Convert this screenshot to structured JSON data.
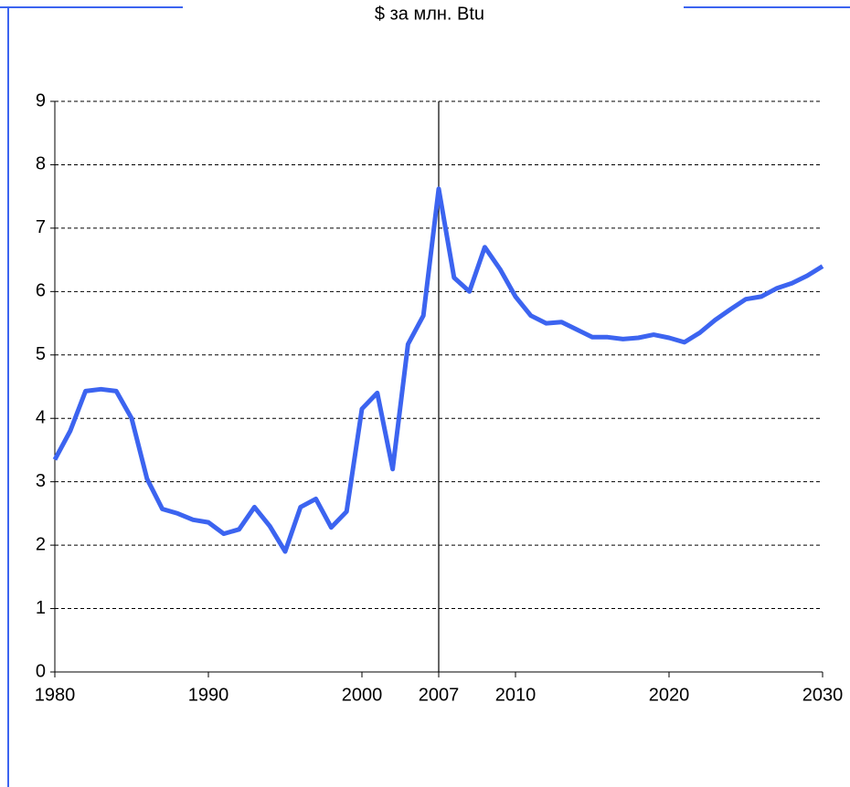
{
  "chart_data": {
    "type": "line",
    "title": "$ за млн. Btu",
    "categories": [
      "1980",
      null,
      null,
      null,
      null,
      null,
      null,
      null,
      null,
      null,
      "1990",
      null,
      null,
      null,
      null,
      null,
      null,
      null,
      null,
      null,
      "2000",
      null,
      null,
      null,
      null,
      "2007",
      null,
      null,
      null,
      null,
      "2010",
      null,
      null,
      null,
      null,
      null,
      null,
      null,
      null,
      null,
      "2020",
      null,
      null,
      null,
      null,
      null,
      null,
      null,
      null,
      null,
      "2030"
    ],
    "series": [
      {
        "color": "#3c64f0",
        "values": [
          3.35,
          3.8,
          4.43,
          4.46,
          4.43,
          4.0,
          3.05,
          2.57,
          2.5,
          2.4,
          2.36,
          2.18,
          2.25,
          2.6,
          2.3,
          1.9,
          2.6,
          2.73,
          2.28,
          2.53,
          4.15,
          4.4,
          3.2,
          5.17,
          5.62,
          7.62,
          6.22,
          6.0,
          6.7,
          6.35,
          5.92,
          5.62,
          5.5,
          5.52,
          5.4,
          5.28,
          5.28,
          5.25,
          5.27,
          5.32,
          5.27,
          5.2,
          5.35,
          5.55,
          5.72,
          5.88,
          5.92,
          6.05,
          6.13,
          6.25,
          6.4
        ]
      }
    ],
    "reference_line": "2007",
    "ylim": [
      0,
      9
    ],
    "yticks": [
      0,
      1,
      2,
      3,
      4,
      5,
      6,
      7,
      8,
      9
    ],
    "grid": true
  }
}
